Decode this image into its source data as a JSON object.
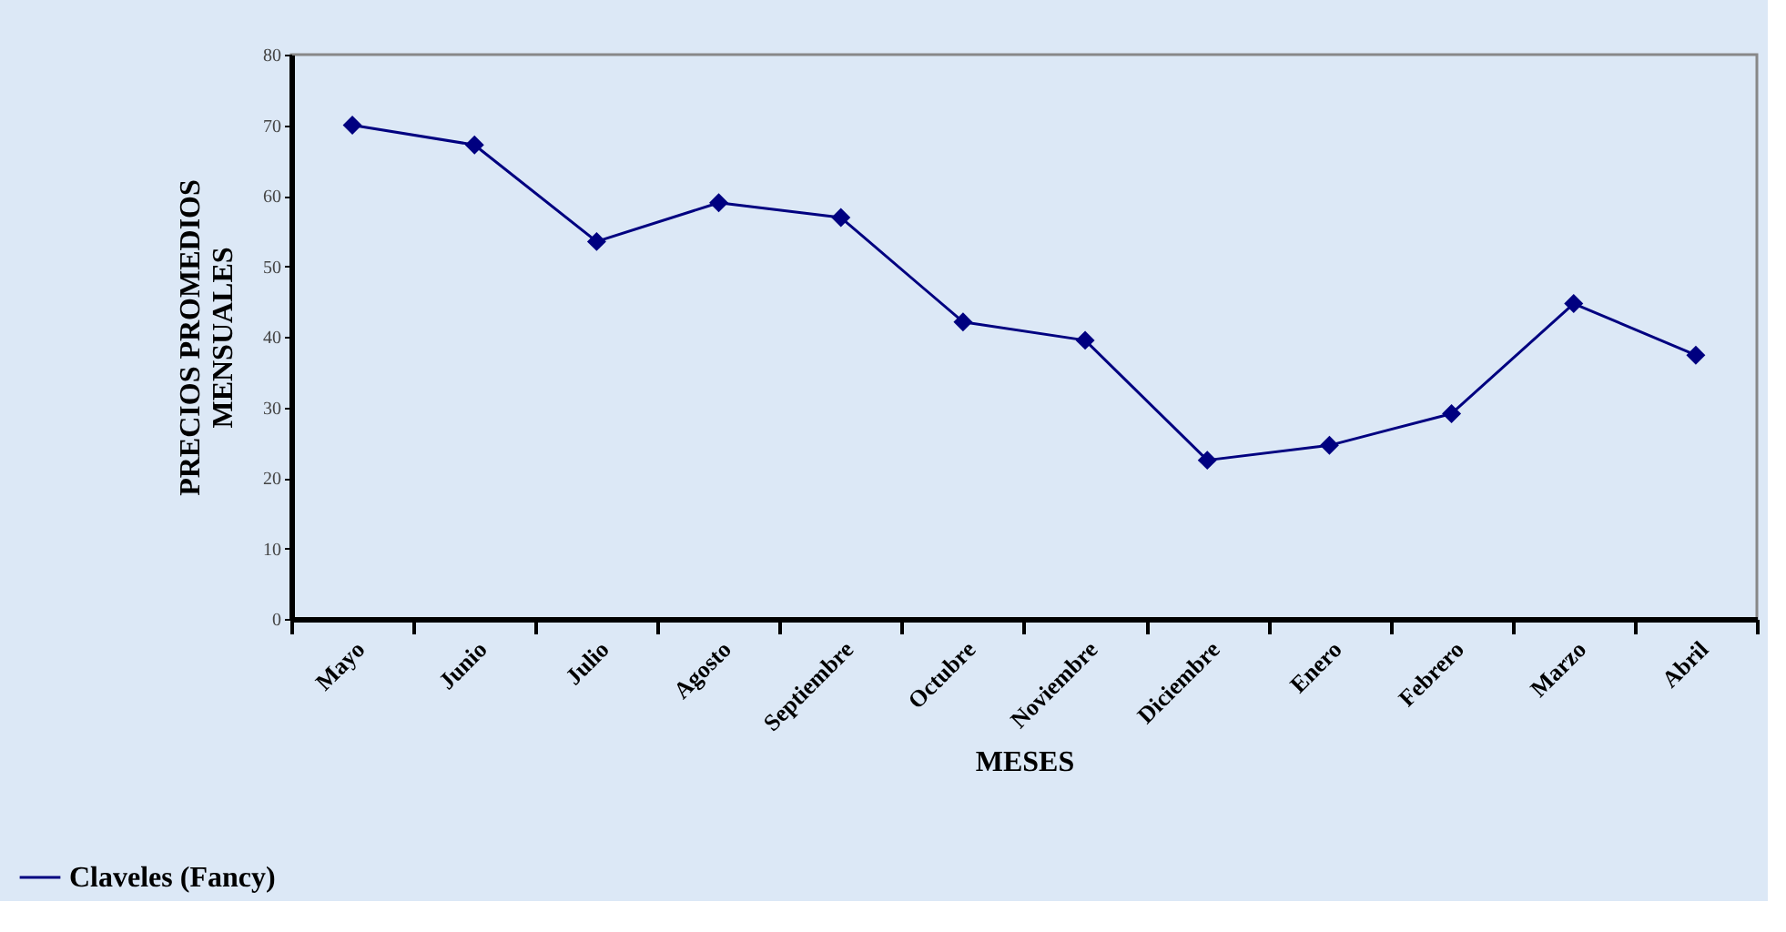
{
  "chart_data": {
    "type": "line",
    "xlabel": "MESES",
    "ylabel": "PRECIOS PROMEDIOS\nMENSUALES",
    "categories": [
      "Mayo",
      "Junio",
      "Julio",
      "Agosto",
      "Septiembre",
      "Octubre",
      "Noviembre",
      "Diciembre",
      "Enero",
      "Febrero",
      "Marzo",
      "Abril"
    ],
    "series": [
      {
        "name": "Claveles (Fancy)",
        "color": "#000080",
        "values": [
          70,
          67.2,
          53.5,
          59,
          56.9,
          42.1,
          39.5,
          22.5,
          24.6,
          29.1,
          44.7,
          37.4
        ]
      }
    ],
    "ylim": [
      0,
      80
    ],
    "yticks": [
      0,
      10,
      20,
      30,
      40,
      50,
      60,
      70,
      80
    ],
    "grid": false,
    "legend": "bottom left",
    "marker": "diamond",
    "line_style": "solid"
  }
}
